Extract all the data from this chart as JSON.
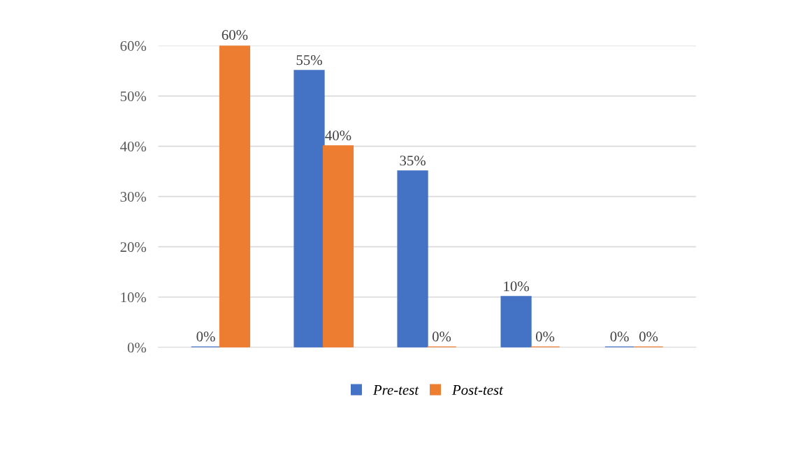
{
  "chart_data": {
    "type": "bar",
    "categories": [
      null,
      null,
      null,
      null,
      null
    ],
    "series": [
      {
        "name": "Pre-test",
        "color": "#4472c4",
        "values": [
          0,
          55,
          35,
          10,
          0
        ],
        "value_labels": [
          "0%",
          "55%",
          "35%",
          "10%",
          "0%"
        ]
      },
      {
        "name": "Post-test",
        "color": "#ed7d31",
        "values": [
          60,
          40,
          0,
          0,
          0
        ],
        "value_labels": [
          "60%",
          "40%",
          "0%",
          "0%",
          "0%"
        ]
      }
    ],
    "ylim": [
      0,
      60
    ],
    "yticks": [
      {
        "value": 0,
        "label": "0%"
      },
      {
        "value": 10,
        "label": "10%"
      },
      {
        "value": 20,
        "label": "20%"
      },
      {
        "value": 30,
        "label": "30%"
      },
      {
        "value": 40,
        "label": "40%"
      },
      {
        "value": 50,
        "label": "50%"
      },
      {
        "value": 60,
        "label": "60%"
      }
    ],
    "grid": "y",
    "legend": "bottom"
  }
}
